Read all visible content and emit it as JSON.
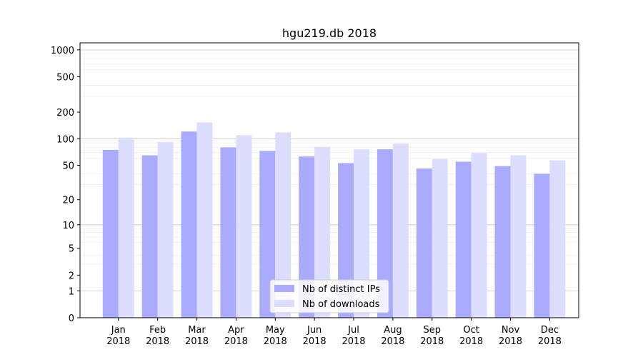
{
  "chart_data": {
    "type": "bar",
    "title": "hgu219.db 2018",
    "xlabel": "",
    "ylabel": "",
    "yscale": "log1p",
    "ylim": [
      0,
      1200
    ],
    "yticks": [
      0,
      1,
      2,
      5,
      10,
      20,
      50,
      100,
      200,
      500,
      1000
    ],
    "categories": [
      [
        "Jan",
        "2018"
      ],
      [
        "Feb",
        "2018"
      ],
      [
        "Mar",
        "2018"
      ],
      [
        "Apr",
        "2018"
      ],
      [
        "May",
        "2018"
      ],
      [
        "Jun",
        "2018"
      ],
      [
        "Jul",
        "2018"
      ],
      [
        "Aug",
        "2018"
      ],
      [
        "Sep",
        "2018"
      ],
      [
        "Oct",
        "2018"
      ],
      [
        "Nov",
        "2018"
      ],
      [
        "Dec",
        "2018"
      ]
    ],
    "series": [
      {
        "name": "Nb of distinct IPs",
        "color": "#aaaaff",
        "values": [
          75,
          65,
          121,
          80,
          73,
          63,
          53,
          76,
          46,
          55,
          49,
          40
        ]
      },
      {
        "name": "Nb of downloads",
        "color": "#ddddff",
        "values": [
          103,
          92,
          153,
          110,
          118,
          81,
          76,
          88,
          59,
          69,
          65,
          57
        ]
      }
    ],
    "grid": true,
    "legend_position": "bottom-center"
  }
}
